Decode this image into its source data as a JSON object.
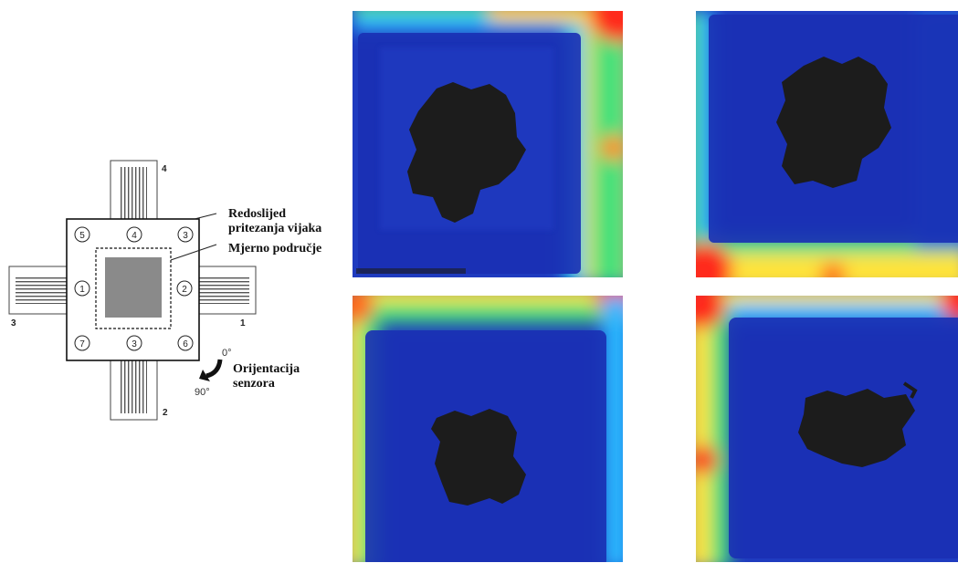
{
  "diagram": {
    "labels": {
      "tightening_line1": "Redoslijed",
      "tightening_line2": "pritezanja vijaka",
      "measuring_area": "Mjerno područje",
      "orientation_line1": "Orijentacija",
      "orientation_line2": "senzora"
    },
    "tab_numbers": {
      "top": "4",
      "right": "1",
      "bottom": "2",
      "left": "3"
    },
    "bolts": {
      "top_left": "5",
      "top_mid": "4",
      "top_right": "3",
      "mid_left": "1",
      "mid_right": "2",
      "bot_left": "7",
      "bot_mid": "3",
      "bot_right": "6"
    },
    "angles": {
      "start": "0°",
      "end": "90°"
    }
  },
  "pressure_maps": [
    {
      "id": "top-left",
      "edge_gradient": "top and right edges"
    },
    {
      "id": "top-right",
      "edge_gradient": "left and bottom edges"
    },
    {
      "id": "bottom-left",
      "edge_gradient": "top and left edges"
    },
    {
      "id": "bottom-right",
      "edge_gradient": "top and left edges"
    }
  ],
  "colors": {
    "low": "#1a35b8",
    "mid_low": "#1fa0ff",
    "mid": "#33e08a",
    "mid_high": "#ffe23a",
    "high": "#ff2a1f",
    "contact_void": "#1c1c1c"
  }
}
